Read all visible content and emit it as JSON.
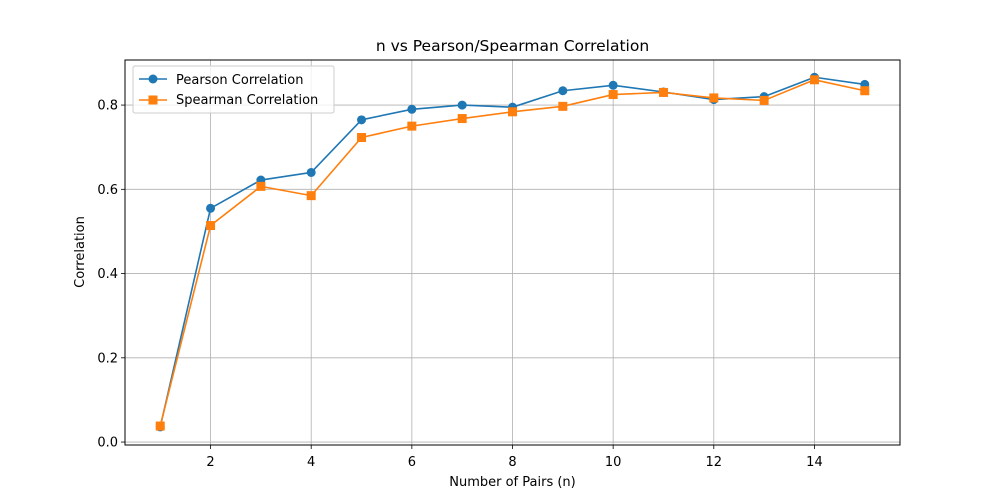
{
  "chart_data": {
    "type": "line",
    "title": "n vs Pearson/Spearman Correlation",
    "xlabel": "Number of Pairs (n)",
    "ylabel": "Correlation",
    "x": [
      1,
      2,
      3,
      4,
      5,
      6,
      7,
      8,
      9,
      10,
      11,
      12,
      13,
      14,
      15
    ],
    "xlim": [
      0.3,
      15.7
    ],
    "ylim": [
      -0.007,
      0.907
    ],
    "xticks": [
      2,
      4,
      6,
      8,
      10,
      12,
      14
    ],
    "xtick_labels": [
      "2",
      "4",
      "6",
      "8",
      "10",
      "12",
      "14"
    ],
    "yticks": [
      0.0,
      0.2,
      0.4,
      0.6,
      0.8
    ],
    "ytick_labels": [
      "0.0",
      "0.2",
      "0.4",
      "0.6",
      "0.8"
    ],
    "grid": true,
    "legend_position": "top-left",
    "series": [
      {
        "name": "Pearson Correlation",
        "color": "#1f77b4",
        "marker": "circle",
        "values": [
          0.036,
          0.555,
          0.622,
          0.64,
          0.765,
          0.79,
          0.8,
          0.795,
          0.834,
          0.847,
          0.831,
          0.813,
          0.82,
          0.866,
          0.849
        ]
      },
      {
        "name": "Spearman Correlation",
        "color": "#ff7f0e",
        "marker": "square",
        "values": [
          0.038,
          0.514,
          0.607,
          0.585,
          0.723,
          0.75,
          0.768,
          0.784,
          0.797,
          0.825,
          0.83,
          0.817,
          0.811,
          0.86,
          0.834
        ]
      }
    ]
  }
}
